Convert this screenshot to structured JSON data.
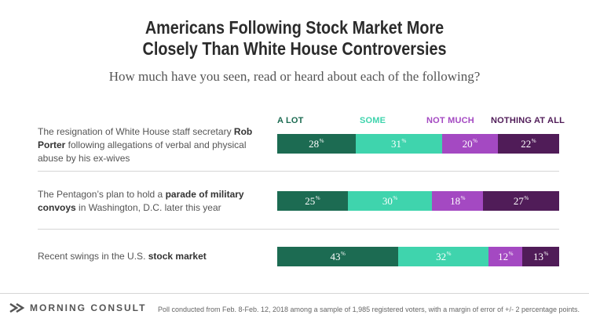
{
  "title_line1": "Americans Following Stock Market More",
  "title_line2": "Closely Than White House Controversies",
  "subtitle": "How much have you seen, read or heard about each of the following?",
  "legend": [
    {
      "label": "A LOT",
      "color": "#1c6b52"
    },
    {
      "label": "SOME",
      "color": "#3fd4ad"
    },
    {
      "label": "NOT MUCH",
      "color": "#a449c2"
    },
    {
      "label": "NOTHING AT ALL",
      "color": "#501c58"
    }
  ],
  "rows": [
    {
      "label_parts": [
        {
          "text": "The resignation of White House staff secretary ",
          "bold": false
        },
        {
          "text": "Rob Porter",
          "bold": true
        },
        {
          "text": " following allegations of verbal and physical abuse by his ex-wives",
          "bold": false
        }
      ]
    },
    {
      "label_parts": [
        {
          "text": "The Pentagon’s plan to hold a ",
          "bold": false
        },
        {
          "text": "parade of military convoys",
          "bold": true
        },
        {
          "text": " in Washington, D.C. later this year",
          "bold": false
        }
      ]
    },
    {
      "label_parts": [
        {
          "text": "Recent swings in the U.S. ",
          "bold": false
        },
        {
          "text": "stock market",
          "bold": true
        }
      ]
    }
  ],
  "chart_data": {
    "type": "bar",
    "stacked": true,
    "orientation": "horizontal",
    "title": "Americans Following Stock Market More Closely Than White House Controversies",
    "subtitle": "How much have you seen, read or heard about each of the following?",
    "unit": "%",
    "categories": [
      "The resignation of White House staff secretary Rob Porter following allegations of verbal and physical abuse by his ex-wives",
      "The Pentagon’s plan to hold a parade of military convoys in Washington, D.C. later this year",
      "Recent swings in the U.S. stock market"
    ],
    "series": [
      {
        "name": "A LOT",
        "values": [
          28,
          25,
          43
        ]
      },
      {
        "name": "SOME",
        "values": [
          31,
          30,
          32
        ]
      },
      {
        "name": "NOT MUCH",
        "values": [
          20,
          18,
          12
        ]
      },
      {
        "name": "NOTHING AT ALL",
        "values": [
          22,
          27,
          13
        ]
      }
    ],
    "legend": "top"
  },
  "footer": {
    "logo_text": "MORNING CONSULT",
    "note": "Poll conducted from Feb. 8-Feb. 12, 2018 among a sample of 1,985 registered voters, with a margin of error of +/- 2 percentage points."
  }
}
